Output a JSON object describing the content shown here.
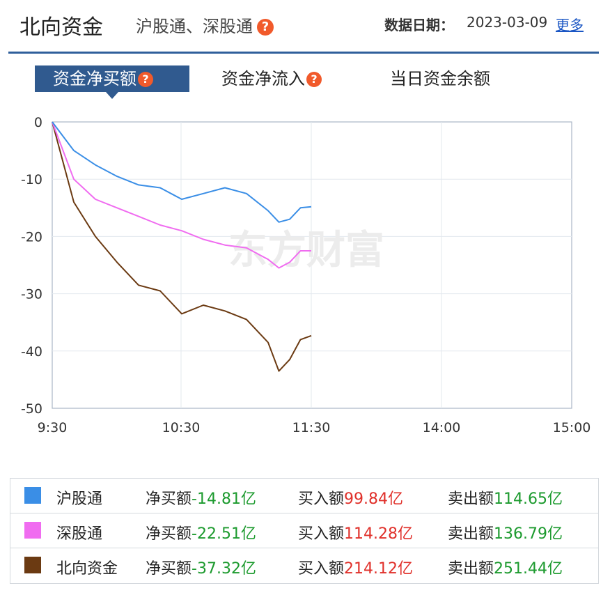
{
  "header": {
    "title": "北向资金",
    "subtitle": "沪股通、深股通",
    "date_label": "数据日期：",
    "date_value": "2023-03-09",
    "more_link": "更多"
  },
  "tabs": [
    {
      "label": "资金净买额",
      "active": true,
      "help": true
    },
    {
      "label": "资金净流入",
      "active": false,
      "help": true
    },
    {
      "label": "当日资金余额",
      "active": false,
      "help": false
    }
  ],
  "watermark": "东方财富",
  "colors": {
    "accent": "#305a8f",
    "hgt": "#3a8ee6",
    "sgt": "#f06cf0",
    "bx": "#6b3a12",
    "positive": "#e0302a",
    "negative": "#1c9a2e"
  },
  "chart_data": {
    "type": "line",
    "x_ticks": [
      "9:30",
      "10:30",
      "11:30",
      "14:00",
      "15:00"
    ],
    "ylim": [
      -50,
      0
    ],
    "y_ticks": [
      "0",
      "-10",
      "-20",
      "-30",
      "-40",
      "-50"
    ],
    "grid": true,
    "x": [
      "9:30",
      "9:40",
      "9:50",
      "10:00",
      "10:10",
      "10:20",
      "10:30",
      "10:40",
      "10:50",
      "11:00",
      "11:10",
      "11:15",
      "11:20",
      "11:25",
      "11:30"
    ],
    "series": [
      {
        "name": "沪股通",
        "color": "#3a8ee6",
        "values": [
          0,
          -5,
          -7.5,
          -9.5,
          -11,
          -11.5,
          -13.5,
          -12.5,
          -11.5,
          -12.5,
          -15.5,
          -17.5,
          -17,
          -15,
          -14.81
        ]
      },
      {
        "name": "深股通",
        "color": "#f06cf0",
        "values": [
          0,
          -10,
          -13.5,
          -15,
          -16.5,
          -18,
          -19,
          -20.5,
          -21.5,
          -22,
          -24,
          -25.5,
          -24.5,
          -22.5,
          -22.51
        ]
      },
      {
        "name": "北向资金",
        "color": "#6b3a12",
        "values": [
          0,
          -14,
          -20,
          -24.5,
          -28.5,
          -29.5,
          -33.5,
          -32,
          -33,
          -34.5,
          -38.5,
          -43.5,
          -41.5,
          -38,
          -37.32
        ]
      }
    ]
  },
  "legend": [
    {
      "name": "沪股通",
      "color": "#3a8ee6",
      "net_label": "净买额",
      "net_value": "-14.81亿",
      "buy_label": "买入额",
      "buy_value": "99.84亿",
      "sell_label": "卖出额",
      "sell_value": "114.65亿"
    },
    {
      "name": "深股通",
      "color": "#f06cf0",
      "net_label": "净买额",
      "net_value": "-22.51亿",
      "buy_label": "买入额",
      "buy_value": "114.28亿",
      "sell_label": "卖出额",
      "sell_value": "136.79亿"
    },
    {
      "name": "北向资金",
      "color": "#6b3a12",
      "net_label": "净买额",
      "net_value": "-37.32亿",
      "buy_label": "买入额",
      "buy_value": "214.12亿",
      "sell_label": "卖出额",
      "sell_value": "251.44亿"
    }
  ]
}
